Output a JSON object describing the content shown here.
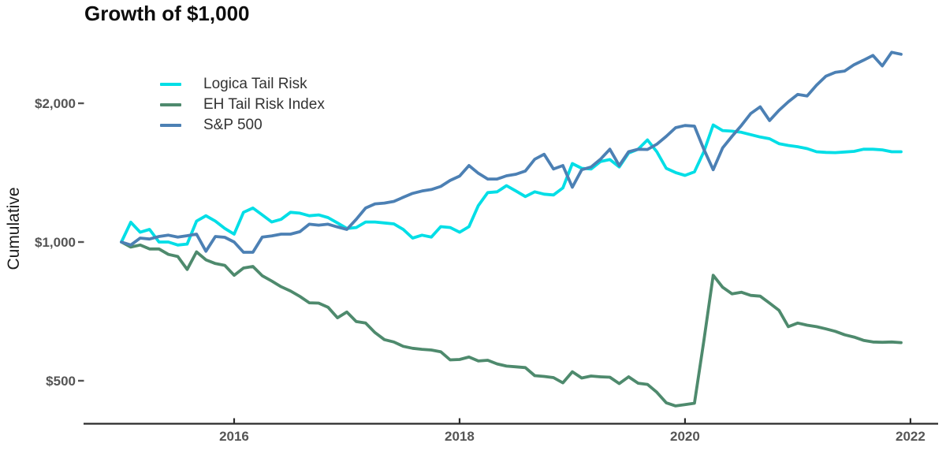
{
  "page": {
    "background": "#ffffff"
  },
  "colors": {
    "axis_line": "#2b2b2b",
    "tick_mark": "#555555",
    "tick_label": "#555555",
    "title_text": "#0d0d0d",
    "legend_text": "#333333",
    "logica": "#00DEE6",
    "eh_tail": "#4E8A6D",
    "sp500": "#4C80B4"
  },
  "chart_data": {
    "type": "line",
    "title": "Growth of $1,000",
    "ylabel": "Cumulative",
    "xlabel": "",
    "y_scale": "log",
    "grid": "off",
    "legend_position": "top-left-inside",
    "x_unit": "month",
    "x_start": "2015-01",
    "x_end": "2021-12",
    "ylim": [
      430,
      2700
    ],
    "y_ticks": [
      {
        "label": "$2,000",
        "value": 2000
      },
      {
        "label": "$1,000",
        "value": 1000
      },
      {
        "label": "$500",
        "value": 500
      }
    ],
    "x_ticks": [
      {
        "label": "2016",
        "year": 2016
      },
      {
        "label": "2018",
        "year": 2018
      },
      {
        "label": "2020",
        "year": 2020
      },
      {
        "label": "2022",
        "year": 2022
      }
    ],
    "series": [
      {
        "name": "Logica Tail Risk",
        "color": "#00DEE6",
        "values": [
          1000,
          1104,
          1050,
          1065,
          1000,
          1000,
          985,
          990,
          1110,
          1140,
          1110,
          1070,
          1040,
          1160,
          1185,
          1145,
          1105,
          1120,
          1160,
          1155,
          1140,
          1145,
          1130,
          1100,
          1070,
          1075,
          1105,
          1105,
          1100,
          1095,
          1065,
          1020,
          1035,
          1025,
          1080,
          1075,
          1050,
          1080,
          1200,
          1280,
          1285,
          1325,
          1290,
          1255,
          1285,
          1270,
          1265,
          1310,
          1480,
          1445,
          1440,
          1495,
          1510,
          1455,
          1560,
          1590,
          1665,
          1570,
          1445,
          1415,
          1395,
          1420,
          1570,
          1795,
          1745,
          1740,
          1730,
          1710,
          1690,
          1675,
          1635,
          1620,
          1610,
          1595,
          1570,
          1565,
          1563,
          1568,
          1573,
          1590,
          1590,
          1585,
          1570,
          1570
        ]
      },
      {
        "name": "EH Tail Risk Index",
        "color": "#4E8A6D",
        "values": [
          1000,
          975,
          985,
          966,
          966,
          940,
          930,
          872,
          952,
          915,
          898,
          890,
          847,
          878,
          885,
          845,
          823,
          800,
          783,
          762,
          738,
          737,
          722,
          685,
          705,
          672,
          667,
          636,
          614,
          607,
          594,
          588,
          585,
          583,
          578,
          555,
          556,
          563,
          552,
          554,
          544,
          538,
          536,
          534,
          513,
          511,
          508,
          495,
          523,
          507,
          512,
          510,
          509,
          493,
          510,
          494,
          491,
          472,
          448,
          441,
          444,
          447,
          610,
          847,
          798,
          772,
          778,
          766,
          763,
          737,
          711,
          655,
          667,
          660,
          655,
          648,
          640,
          629,
          622,
          612,
          607,
          606,
          607,
          605
        ]
      },
      {
        "name": "S&P 500",
        "color": "#4C80B4",
        "values": [
          1000,
          985,
          1020,
          1015,
          1028,
          1035,
          1025,
          1032,
          1040,
          955,
          1028,
          1024,
          1000,
          950,
          950,
          1025,
          1031,
          1040,
          1040,
          1053,
          1093,
          1088,
          1093,
          1078,
          1065,
          1120,
          1185,
          1210,
          1215,
          1225,
          1250,
          1275,
          1290,
          1300,
          1320,
          1360,
          1390,
          1465,
          1410,
          1370,
          1370,
          1392,
          1403,
          1426,
          1512,
          1550,
          1440,
          1465,
          1315,
          1435,
          1455,
          1512,
          1590,
          1465,
          1570,
          1590,
          1588,
          1630,
          1695,
          1770,
          1790,
          1784,
          1590,
          1435,
          1600,
          1695,
          1790,
          1900,
          1965,
          1835,
          1930,
          2015,
          2090,
          2075,
          2190,
          2290,
          2335,
          2350,
          2425,
          2480,
          2540,
          2410,
          2580,
          2555
        ]
      }
    ]
  }
}
